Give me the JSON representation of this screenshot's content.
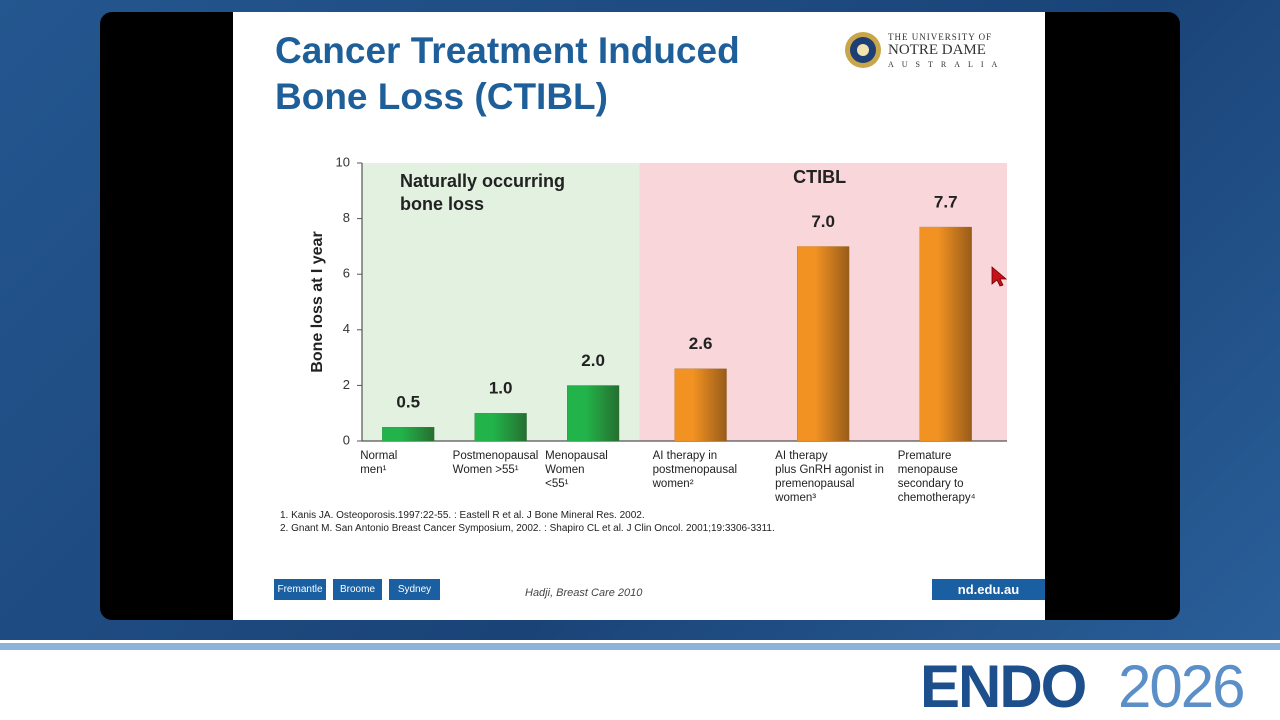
{
  "slide": {
    "title": "Cancer Treatment Induced\nBone Loss (CTIBL)",
    "logo": [
      "THE UNIVERSITY OF",
      "NOTRE DAME",
      "AUSTRALIA"
    ],
    "footnotes": [
      "1.  Kanis JA. Osteoporosis.1997:22-55. : Eastell R et al. J Bone Mineral Res. 2002.",
      "2.  Gnant M. San Antonio Breast Cancer Symposium, 2002. : Shapiro CL et al. J Clin Oncol. 2001;19:3306-3311."
    ],
    "campuses": [
      "Fremantle",
      "Broome",
      "Sydney"
    ],
    "source": "Hadji, Breast Care 2010",
    "url": "nd.edu.au"
  },
  "conference": {
    "name": "ENDO",
    "year": "2026"
  },
  "chart_data": {
    "type": "bar",
    "y_label": "Bone loss at I year",
    "regions": [
      {
        "label": "Naturally occurring\nbone loss",
        "color": "#e2f1e0"
      },
      {
        "label": "CTIBL",
        "color": "#f8d6d9"
      }
    ],
    "categories": [
      "Normal\nmen¹",
      "Postmenopausal\nWomen >55¹",
      "Menopausal\nWomen\n<55¹",
      "AI therapy in\n postmenopausal\nwomen²",
      "AI therapy\nplus GnRH agonist in\npremenopausal\n women³",
      "Premature\nmenopause\nsecondary to\nchemotherapy⁴"
    ],
    "values": [
      0.5,
      1.0,
      2.0,
      2.6,
      7.0,
      7.7
    ],
    "value_labels": [
      "0.5",
      "1.0",
      "2.0",
      "2.6",
      "7.0",
      "7.7"
    ],
    "colors": [
      "#22b44a",
      "#22b44a",
      "#22b44a",
      "#f29222",
      "#f29222",
      "#f29222"
    ],
    "ylim": [
      0,
      10
    ],
    "yticks": [
      0,
      2,
      4,
      6,
      8,
      10
    ]
  }
}
